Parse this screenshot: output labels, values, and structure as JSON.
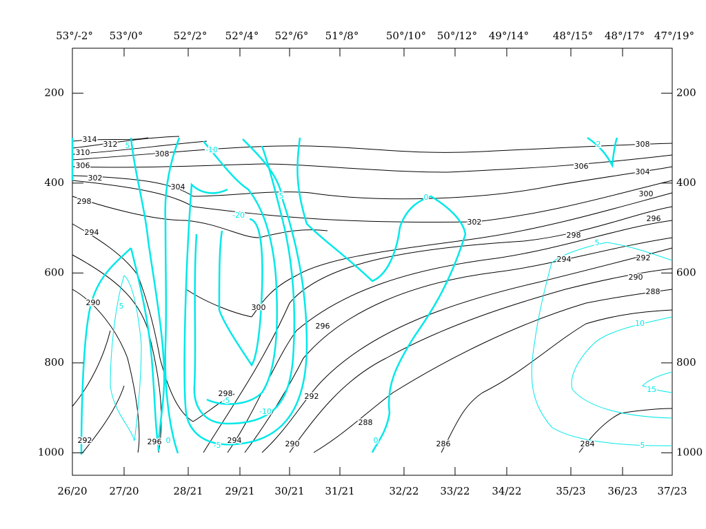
{
  "chart_data": {
    "type": "cross-section",
    "top_labels": [
      "53°/-2°",
      "53°/0°",
      "52°/2°",
      "52°/4°",
      "52°/6°",
      "51°/8°",
      "50°/10°",
      "50°/12°",
      "49°/14°",
      "48°/15°",
      "48°/17°",
      "47°/19°"
    ],
    "x_labels": [
      "26/20",
      "27/20",
      "28/21",
      "29/21",
      "30/21",
      "31/21",
      "32/22",
      "33/22",
      "34/22",
      "35/23",
      "36/23",
      "37/23"
    ],
    "ylim": [
      100,
      1050
    ],
    "yticks": [
      200,
      400,
      600,
      800,
      1000
    ],
    "isentrope_labels": [
      "314",
      "312",
      "310",
      "308",
      "306",
      "302",
      "304",
      "298",
      "294",
      "290",
      "300",
      "298",
      "296",
      "292",
      "294",
      "290",
      "288",
      "286",
      "284",
      "302",
      "298",
      "294",
      "290",
      "288",
      "292",
      "296",
      "300",
      "304",
      "306",
      "308",
      "296",
      "292"
    ],
    "wind_labels": [
      "5",
      "-10",
      "-20",
      "5",
      "5",
      "-5",
      "-10",
      "0",
      "-5",
      "0",
      "0",
      "5",
      "10",
      "15",
      "5",
      "2"
    ],
    "colors": {
      "isentrope": "#000000",
      "wind": "#00e8e8"
    }
  }
}
